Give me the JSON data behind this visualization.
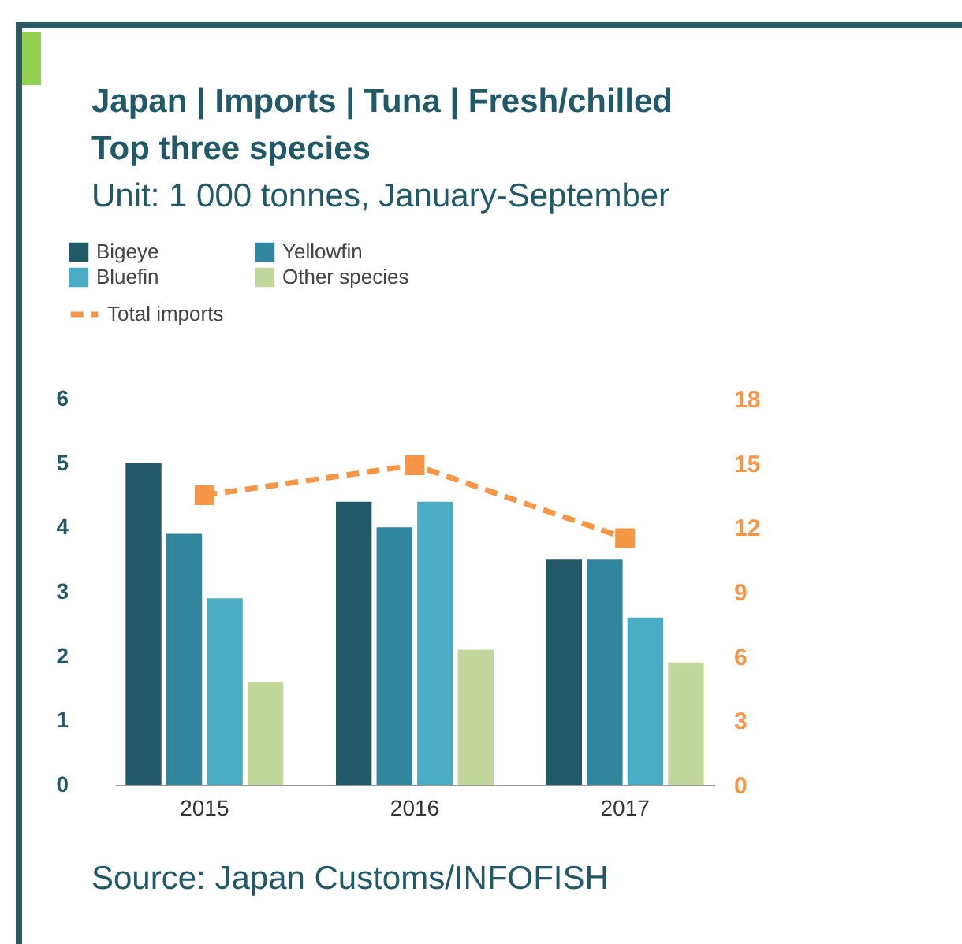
{
  "chart_data": {
    "type": "bar",
    "title": "Japan | Imports | Tuna | Fresh/chilled Top three species",
    "subtitle": "Unit: 1 000 tonnes, January-September",
    "categories": [
      "2015",
      "2016",
      "2017"
    ],
    "series": [
      {
        "name": "Bigeye",
        "color": "#215968",
        "values": [
          5.0,
          4.4,
          3.5
        ]
      },
      {
        "name": "Yellowfin",
        "color": "#31859c",
        "values": [
          3.9,
          4.0,
          3.5
        ]
      },
      {
        "name": "Bluefin",
        "color": "#4bacc6",
        "values": [
          2.9,
          4.4,
          2.6
        ]
      },
      {
        "name": "Other species",
        "color": "#c3d69b",
        "values": [
          1.6,
          2.1,
          1.9
        ]
      },
      {
        "name": "Total imports",
        "type": "line",
        "axis": "y2",
        "color": "#f79646",
        "marker": "square",
        "line_style": "dashed",
        "values": [
          13.5,
          14.9,
          11.5
        ]
      }
    ],
    "ylim": [
      0,
      6
    ],
    "yticks": [
      0,
      1,
      2,
      3,
      4,
      5,
      6
    ],
    "y2lim": [
      0,
      18
    ],
    "y2ticks": [
      0,
      3,
      6,
      9,
      12,
      15,
      18
    ],
    "legend": "top left",
    "grid": false,
    "annotations": [
      "Source: Japan Customs/INFOFISH"
    ]
  }
}
